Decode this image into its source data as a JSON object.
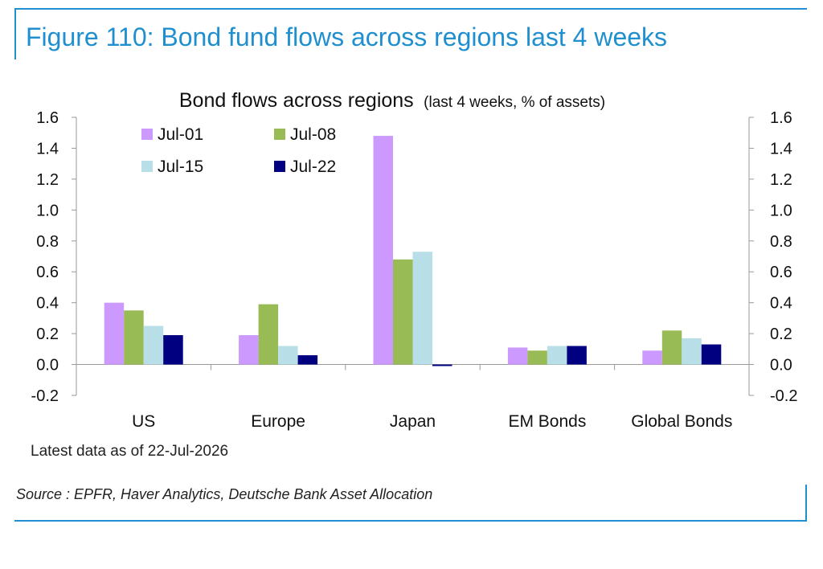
{
  "figure_title": "Figure 110: Bond fund flows across regions last 4 weeks",
  "note": "Latest data as of 22-Jul-2026",
  "source": "Source : EPFR, Haver Analytics, Deutsche Bank Asset Allocation",
  "colors": {
    "frame": "#1f8fd0"
  },
  "chart_data": {
    "type": "bar",
    "title": "Bond flows across regions",
    "subtitle": "(last 4 weeks, % of assets)",
    "categories": [
      "US",
      "Europe",
      "Japan",
      "EM Bonds",
      "Global Bonds"
    ],
    "series": [
      {
        "name": "Jul-01",
        "color": "#cc99ff",
        "values": [
          0.4,
          0.19,
          1.48,
          0.11,
          0.09
        ]
      },
      {
        "name": "Jul-08",
        "color": "#99bb55",
        "values": [
          0.35,
          0.39,
          0.68,
          0.09,
          0.22
        ]
      },
      {
        "name": "Jul-15",
        "color": "#b8dfe8",
        "values": [
          0.25,
          0.12,
          0.73,
          0.12,
          0.17
        ]
      },
      {
        "name": "Jul-22",
        "color": "#000080",
        "values": [
          0.19,
          0.06,
          -0.01,
          0.12,
          0.13
        ]
      }
    ],
    "ylim": [
      -0.2,
      1.6
    ],
    "yticks": [
      "-0.2",
      "0.0",
      "0.2",
      "0.4",
      "0.6",
      "0.8",
      "1.0",
      "1.2",
      "1.4",
      "1.6"
    ],
    "y2ticks": [
      "-0.2",
      "0.0",
      "0.2",
      "0.4",
      "0.6",
      "0.8",
      "1.0",
      "1.2",
      "1.4",
      "1.6"
    ],
    "legend": "top-left",
    "grid": false
  }
}
